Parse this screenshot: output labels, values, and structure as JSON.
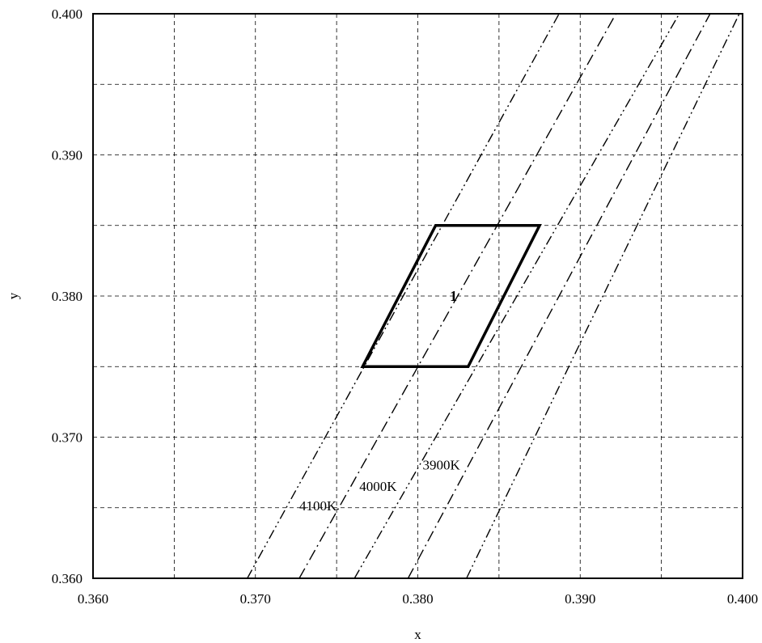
{
  "chart_data": {
    "type": "line",
    "title": "",
    "xlabel": "x",
    "ylabel": "y",
    "xlim": [
      0.36,
      0.4
    ],
    "ylim": [
      0.36,
      0.4
    ],
    "xticks": [
      "0.360",
      "0.370",
      "0.380",
      "0.390",
      "0.400"
    ],
    "yticks": [
      "0.360",
      "0.370",
      "0.380",
      "0.390",
      "0.400"
    ],
    "grid": true,
    "grid_minor_step": 0.005,
    "series": [
      {
        "name": "",
        "style": "dash-dot-dot",
        "points": [
          [
            0.3695,
            0.36
          ],
          [
            0.3887,
            0.4
          ]
        ]
      },
      {
        "name": "",
        "style": "dash-dot",
        "points": [
          [
            0.3727,
            0.36
          ],
          [
            0.3922,
            0.4
          ]
        ]
      },
      {
        "name": "",
        "style": "dash-dot-dot",
        "points": [
          [
            0.3761,
            0.36
          ],
          [
            0.3961,
            0.4
          ]
        ]
      },
      {
        "name": "",
        "style": "dash-dot",
        "points": [
          [
            0.3794,
            0.36
          ],
          [
            0.398,
            0.4
          ]
        ]
      },
      {
        "name": "",
        "style": "dash-dot-dot",
        "points": [
          [
            0.383,
            0.36
          ],
          [
            0.3998,
            0.4
          ]
        ]
      }
    ],
    "region": {
      "label": "1",
      "vertices": [
        [
          0.3766,
          0.375
        ],
        [
          0.3831,
          0.375
        ],
        [
          0.3875,
          0.385
        ],
        [
          0.3811,
          0.385
        ]
      ]
    },
    "annotations": [
      {
        "text": "4100K",
        "x": 0.3727,
        "y": 0.3648
      },
      {
        "text": "4000K",
        "x": 0.3764,
        "y": 0.3662
      },
      {
        "text": "3900K",
        "x": 0.3803,
        "y": 0.3677
      }
    ]
  }
}
